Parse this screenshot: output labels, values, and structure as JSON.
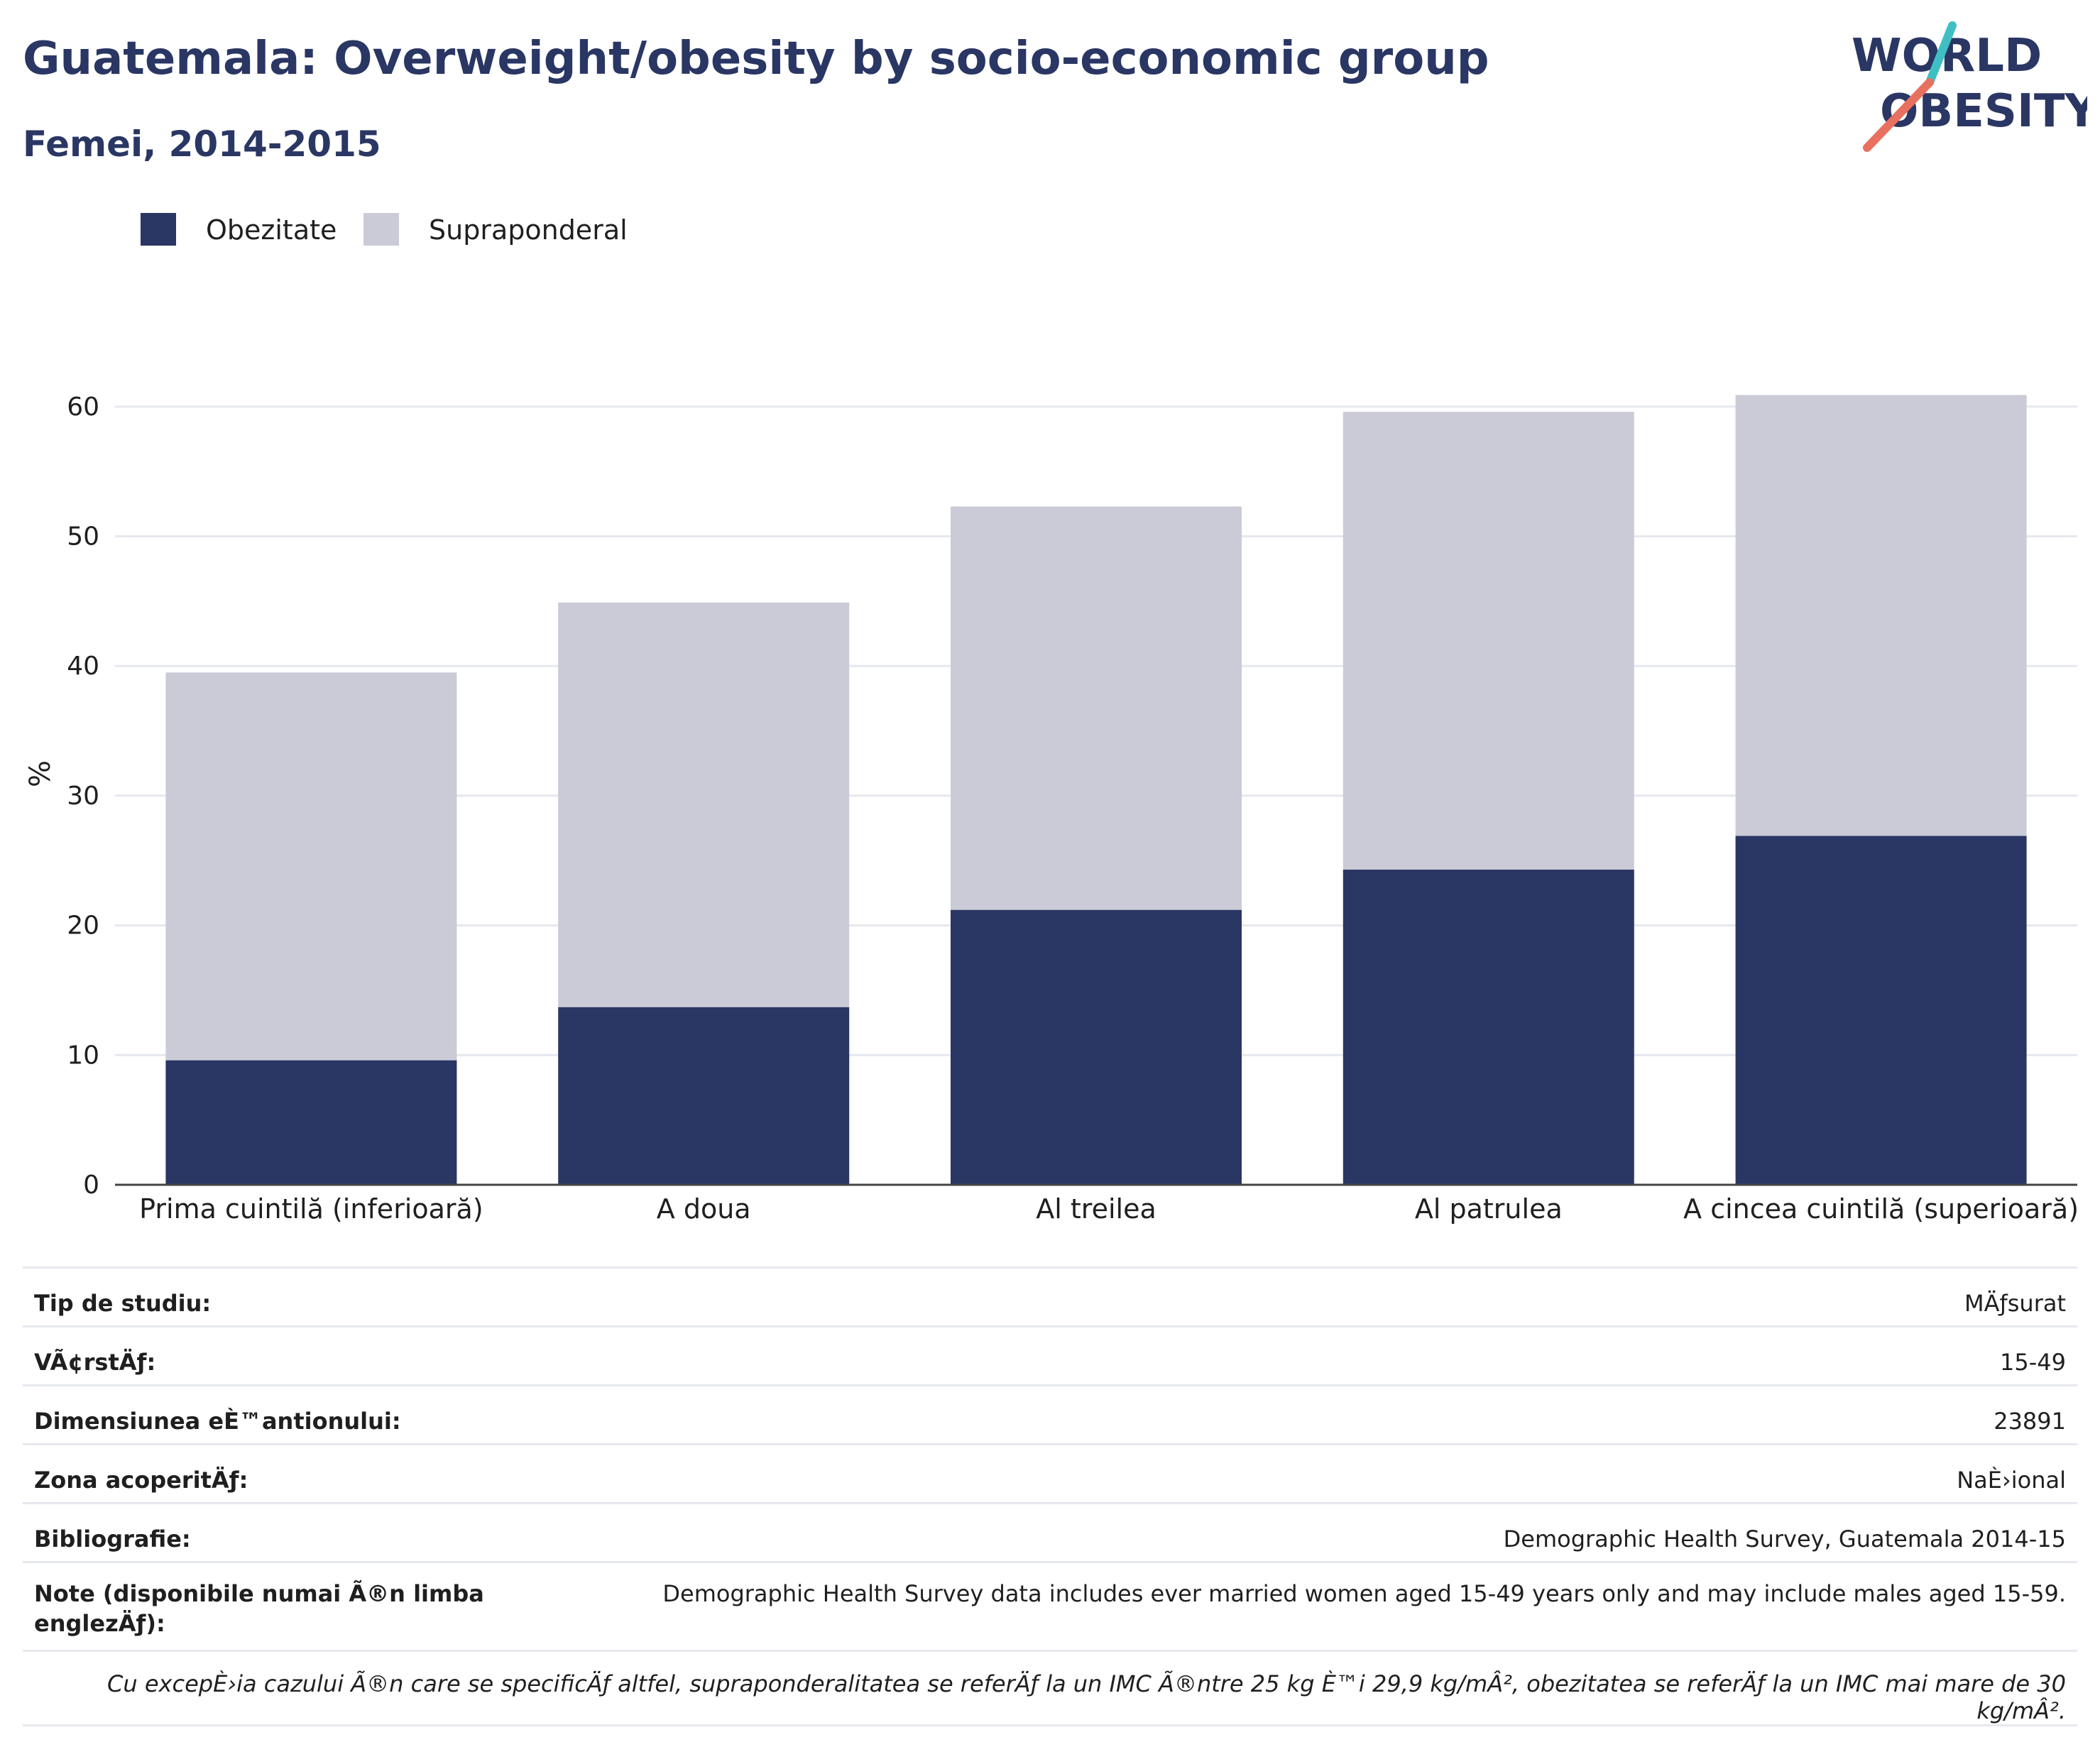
{
  "header": {
    "title": "Guatemala: Overweight/obesity by socio-economic group",
    "subtitle": "Femei, 2014-2015",
    "logo_line1": "WORLD",
    "logo_line2": "OBESITY"
  },
  "colors": {
    "obesity": "#2a3663",
    "overweight": "#cacbd6",
    "title": "#2a3663",
    "logo_teal": "#3fbfc4",
    "logo_coral": "#e8705f",
    "grid": "#e6e8ef"
  },
  "chart_data": {
    "type": "bar",
    "stacked": true,
    "title": "Guatemala: Overweight/obesity by socio-economic group",
    "subtitle": "Femei, 2014-2015",
    "categories": [
      "Prima cuintilă (inferioară)",
      "A doua",
      "Al treilea",
      "Al patrulea",
      "A cincea cuintilă (superioară)"
    ],
    "series": [
      {
        "name": "Obezitate",
        "color": "#2a3663",
        "values": [
          9.6,
          13.7,
          21.2,
          24.3,
          26.9
        ]
      },
      {
        "name": "Supraponderal",
        "color": "#cacbd6",
        "values": [
          29.9,
          31.2,
          31.1,
          35.3,
          34.0
        ]
      }
    ],
    "totals": [
      39.5,
      44.9,
      52.3,
      59.6,
      60.9
    ],
    "xlabel": "",
    "ylabel": "%",
    "ylim": [
      0,
      60
    ],
    "yticks": [
      0,
      10,
      20,
      30,
      40,
      50,
      60
    ],
    "grid": true,
    "legend_position": "top-left"
  },
  "info": {
    "rows": [
      {
        "key": "Tip de studiu:",
        "value": "MÄƒsurat"
      },
      {
        "key": "VÃ¢rstÄƒ:",
        "value": "15-49"
      },
      {
        "key": "Dimensiunea eÈ™antionului:",
        "value": "23891"
      },
      {
        "key": "Zona acoperitÄƒ:",
        "value": "NaÈ›ional"
      },
      {
        "key": "Bibliografie:",
        "value": "Demographic Health Survey, Guatemala 2014-15"
      }
    ],
    "notes_key": "Note (disponibile numai Ã®n limba englezÄƒ):",
    "notes_value": "Demographic Health Survey data includes ever married women aged 15-49 years only and may include males aged 15-59.",
    "footnote": "Cu excepÈ›ia cazului Ã®n care se specificÄƒ altfel, supraponderalitatea se referÄƒ la un IMC Ã®ntre 25 kg È™i 29,9 kg/mÂ², obezitatea se referÄƒ la un IMC mai mare de 30 kg/mÂ²."
  }
}
